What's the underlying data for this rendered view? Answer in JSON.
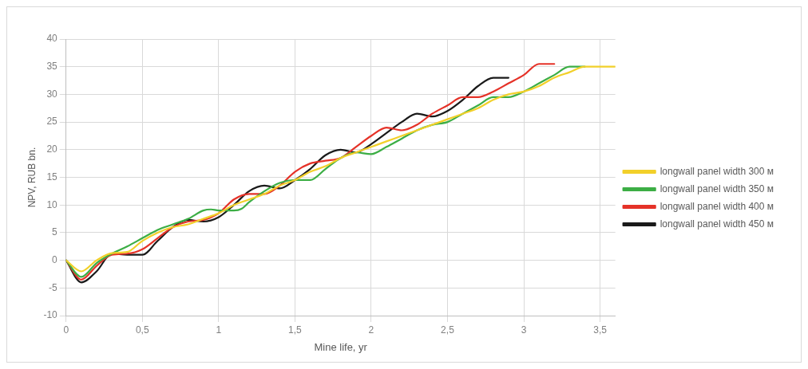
{
  "chart_data": {
    "type": "line",
    "xlabel": "Mine life, yr",
    "ylabel": "NPV, RUB bn.",
    "xlim": [
      0,
      3.6
    ],
    "xticks": [
      {
        "value": 0,
        "label": "0"
      },
      {
        "value": 0.5,
        "label": "0,5"
      },
      {
        "value": 1,
        "label": "1"
      },
      {
        "value": 1.5,
        "label": "1,5"
      },
      {
        "value": 2,
        "label": "2"
      },
      {
        "value": 2.5,
        "label": "2,5"
      },
      {
        "value": 3,
        "label": "3"
      },
      {
        "value": 3.5,
        "label": "3,5"
      }
    ],
    "ylim": [
      -10,
      40
    ],
    "yticks": [
      -10,
      -5,
      0,
      5,
      10,
      15,
      20,
      25,
      30,
      35,
      40
    ],
    "grid": true,
    "legend": "right",
    "marker": "none",
    "line_style": "solid",
    "series": [
      {
        "name": "longwall panel width 300 м",
        "color": "#f2d02a",
        "x": [
          0,
          0.1,
          0.2,
          0.3,
          0.4,
          0.5,
          0.6,
          0.7,
          0.8,
          0.9,
          1,
          1.1,
          1.2,
          1.3,
          1.4,
          1.5,
          1.6,
          1.7,
          1.8,
          1.9,
          2,
          2.1,
          2.2,
          2.3,
          2.4,
          2.5,
          2.6,
          2.7,
          2.8,
          2.9,
          3,
          3.1,
          3.2,
          3.3,
          3.4,
          3.5,
          3.6
        ],
        "values": [
          0,
          -2,
          0,
          1.3,
          1.5,
          3.5,
          5,
          6,
          6.5,
          7.5,
          8.5,
          10,
          11,
          12,
          13.5,
          14.5,
          16,
          17,
          18.5,
          19.5,
          20.5,
          21.5,
          22.5,
          23.5,
          24.5,
          25.5,
          26.5,
          27.5,
          29,
          30,
          30.5,
          31.5,
          33,
          34,
          35,
          35,
          35
        ]
      },
      {
        "name": "longwall panel width 350 м",
        "color": "#3cae45",
        "x": [
          0,
          0.1,
          0.2,
          0.3,
          0.4,
          0.5,
          0.6,
          0.7,
          0.8,
          0.9,
          0.95,
          1,
          1.1,
          1.15,
          1.2,
          1.3,
          1.4,
          1.5,
          1.6,
          1.7,
          1.8,
          1.9,
          2,
          2.1,
          2.2,
          2.3,
          2.4,
          2.5,
          2.6,
          2.7,
          2.8,
          2.9,
          3,
          3.1,
          3.2,
          3.3,
          3.4
        ],
        "values": [
          0,
          -3,
          -0.5,
          1.2,
          2.5,
          4,
          5.5,
          6.5,
          7.5,
          9,
          9.2,
          9,
          9,
          9.3,
          10.5,
          12.5,
          14,
          14.5,
          14.5,
          16.5,
          18.5,
          19.5,
          19.2,
          20.5,
          22,
          23.5,
          24.5,
          25,
          26.5,
          28,
          29.5,
          29.5,
          30.5,
          32,
          33.5,
          35,
          35
        ]
      },
      {
        "name": "longwall panel width 400 м",
        "color": "#e53228",
        "x": [
          0,
          0.1,
          0.2,
          0.3,
          0.4,
          0.5,
          0.6,
          0.7,
          0.8,
          0.9,
          1,
          1.1,
          1.2,
          1.3,
          1.4,
          1.5,
          1.6,
          1.7,
          1.8,
          1.9,
          2,
          2.1,
          2.2,
          2.3,
          2.4,
          2.5,
          2.6,
          2.7,
          2.8,
          2.9,
          3,
          3.1,
          3.2
        ],
        "values": [
          0,
          -3.5,
          -1,
          1,
          1.2,
          2,
          4,
          6,
          7,
          7.3,
          8.5,
          11,
          12,
          12,
          13.5,
          16,
          17.5,
          18,
          18.5,
          20.5,
          22.5,
          24,
          23.5,
          24.5,
          26.5,
          28,
          29.5,
          29.5,
          30.5,
          32,
          33.5,
          35.5,
          35.5
        ]
      },
      {
        "name": "longwall panel width 450 м",
        "color": "#1a1a1a",
        "x": [
          0,
          0.1,
          0.2,
          0.3,
          0.4,
          0.5,
          0.6,
          0.7,
          0.8,
          0.9,
          1,
          1.1,
          1.2,
          1.3,
          1.4,
          1.5,
          1.6,
          1.7,
          1.8,
          1.9,
          2,
          2.1,
          2.2,
          2.3,
          2.4,
          2.5,
          2.6,
          2.7,
          2.8,
          2.9
        ],
        "values": [
          0,
          -4,
          -2,
          1.2,
          1,
          1,
          3.5,
          6,
          7.3,
          7,
          7.8,
          10,
          12.5,
          13.5,
          13,
          14.5,
          16.5,
          19,
          20,
          19.5,
          21,
          23,
          25,
          26.5,
          26,
          27,
          29,
          31.5,
          33,
          33
        ]
      }
    ]
  }
}
